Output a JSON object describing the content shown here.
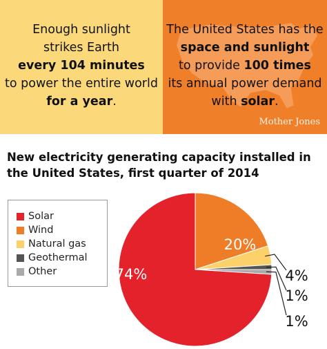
{
  "left_panel": {
    "lines": [
      {
        "text": "Enough sunlight",
        "bold": false
      },
      {
        "text": "strikes Earth",
        "bold": false
      },
      {
        "text": "every 104 minutes",
        "bold": true
      },
      {
        "text": "to power the entire world",
        "bold": false
      },
      {
        "segments": [
          {
            "text": "for a year",
            "bold": true
          },
          {
            "text": ".",
            "bold": false
          }
        ]
      }
    ],
    "background": "#fbd87a"
  },
  "right_panel": {
    "lines": [
      {
        "text": "The United States has the",
        "bold": false
      },
      {
        "text": "space and sunlight",
        "bold": true
      },
      {
        "segments": [
          {
            "text": "to provide ",
            "bold": false
          },
          {
            "text": "100 times",
            "bold": true
          }
        ]
      },
      {
        "text": "its annual power demand",
        "bold": false
      },
      {
        "segments": [
          {
            "text": "with ",
            "bold": false
          },
          {
            "text": "solar",
            "bold": true
          },
          {
            "text": ".",
            "bold": false
          }
        ]
      }
    ],
    "background": "#f07f2a",
    "map_color": "#f59c59"
  },
  "brand": "Mother Jones",
  "chart_data": {
    "type": "pie",
    "title": "New electricity generating capacity installed in the United States, first quarter of 2014",
    "legend_position": "left",
    "slices": [
      {
        "name": "Solar",
        "value": 74,
        "label": "74%",
        "color": "#e3222b"
      },
      {
        "name": "Wind",
        "value": 20,
        "label": "20%",
        "color": "#ef7d28"
      },
      {
        "name": "Natural gas",
        "value": 4,
        "label": "4%",
        "color": "#fcd16a"
      },
      {
        "name": "Geothermal",
        "value": 1,
        "label": "1%",
        "color": "#555555"
      },
      {
        "name": "Other",
        "value": 1,
        "label": "1%",
        "color": "#aaaaaa"
      }
    ]
  }
}
